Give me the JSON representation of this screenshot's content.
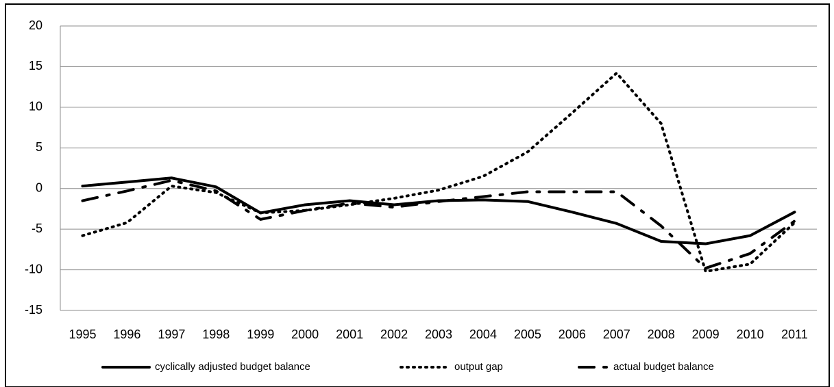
{
  "chart_data": {
    "type": "line",
    "categories": [
      "1995",
      "1996",
      "1997",
      "1998",
      "1999",
      "2000",
      "2001",
      "2002",
      "2003",
      "2004",
      "2005",
      "2006",
      "2007",
      "2008",
      "2009",
      "2010",
      "2011"
    ],
    "series": [
      {
        "name": "cyclically adjusted budget balance",
        "color": "#000000",
        "dash": "solid",
        "values": [
          0.3,
          0.8,
          1.3,
          0.2,
          -3.0,
          -2.0,
          -1.5,
          -2.0,
          -1.5,
          -1.4,
          -1.6,
          -2.9,
          -4.3,
          -6.5,
          -6.8,
          -5.8,
          -2.9
        ]
      },
      {
        "name": "output gap",
        "color": "#000000",
        "dash": "dotted",
        "values": [
          -5.8,
          -4.2,
          0.3,
          -0.5,
          -3.0,
          -2.7,
          -2.0,
          -1.2,
          -0.2,
          1.5,
          4.5,
          9.3,
          14.2,
          8.0,
          -10.2,
          -9.3,
          -4.2
        ]
      },
      {
        "name": "actual budget balance",
        "color": "#000000",
        "dash": "dashdot",
        "values": [
          -1.5,
          -0.3,
          1.0,
          -0.3,
          -3.8,
          -2.7,
          -1.8,
          -2.3,
          -1.6,
          -1.0,
          -0.4,
          -0.4,
          -0.4,
          -4.6,
          -9.8,
          -8.0,
          -4.0
        ]
      }
    ],
    "ylim": [
      -15,
      20
    ],
    "yticks": [
      -15,
      -10,
      -5,
      0,
      5,
      10,
      15,
      20
    ],
    "grid": true,
    "legend": "bottom"
  }
}
